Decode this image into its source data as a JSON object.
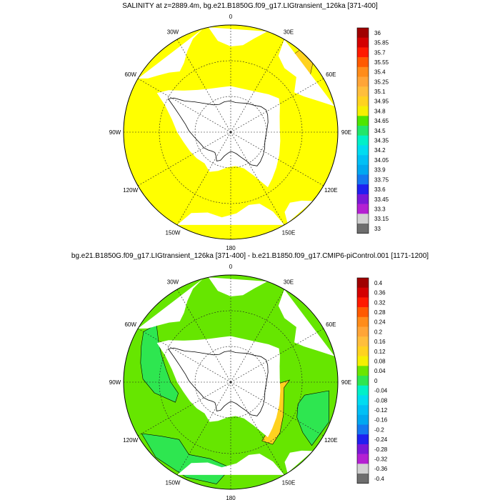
{
  "panels": [
    {
      "id": "top",
      "title": "SALINITY at z=2889.4m, bg.e21.B1850G.f09_g17.LIGtransient_126ka [371-400]",
      "lon_labels": [
        "0",
        "30E",
        "60E",
        "90E",
        "120E",
        "150E",
        "180",
        "150W",
        "120W",
        "90W",
        "60W",
        "30W"
      ],
      "colorbar": {
        "labels": [
          "36",
          "35.85",
          "35.7",
          "35.55",
          "35.4",
          "35.25",
          "35.1",
          "34.95",
          "34.8",
          "34.65",
          "34.5",
          "34.35",
          "34.2",
          "34.05",
          "33.9",
          "33.75",
          "33.6",
          "33.45",
          "33.3",
          "33.15",
          "33"
        ],
        "colors": [
          "#a00000",
          "#d40000",
          "#ff1a00",
          "#ff5a00",
          "#ff8c1a",
          "#ffa538",
          "#ffbe3c",
          "#ffd21f",
          "#f5f000",
          "#4ee600",
          "#22e66a",
          "#00f0c8",
          "#00dcf0",
          "#00c0f5",
          "#00a8f0",
          "#1478f0",
          "#2020f0",
          "#7a18d8",
          "#b420d2",
          "#d2d2d2",
          "#6e6e6e"
        ]
      },
      "field": {
        "dominant_color": "#ffff00",
        "dominant_value_range": [
          34.8,
          34.95
        ]
      }
    },
    {
      "id": "bottom",
      "title": "bg.e21.B1850G.f09_g17.LIGtransient_126ka [371-400] - b.e21.B1850.f09_g17.CMIP6-piControl.001 [1171-1200]",
      "lon_labels": [
        "0",
        "30E",
        "60E",
        "90E",
        "120E",
        "150E",
        "180",
        "150W",
        "120W",
        "90W",
        "60W",
        "30W"
      ],
      "colorbar": {
        "labels": [
          "0.4",
          "0.36",
          "0.32",
          "0.28",
          "0.24",
          "0.2",
          "0.16",
          "0.12",
          "0.08",
          "0.04",
          "0",
          "-0.04",
          "-0.08",
          "-0.12",
          "-0.16",
          "-0.2",
          "-0.24",
          "-0.28",
          "-0.32",
          "-0.36",
          "-0.4"
        ],
        "colors": [
          "#a00000",
          "#d40000",
          "#ff1a00",
          "#ff5a00",
          "#ff8c1a",
          "#ffa538",
          "#ffbe3c",
          "#ffd21f",
          "#f5f000",
          "#6be600",
          "#2ee650",
          "#00f0c8",
          "#00dcf0",
          "#00c0f5",
          "#00a8f0",
          "#1478f0",
          "#2020f0",
          "#7a18d8",
          "#b420d2",
          "#d2d2d2",
          "#6e6e6e"
        ]
      },
      "field": {
        "dominant_color": "#66e600",
        "secondary_color": "#2ee650",
        "positive_color": "#ffd21f",
        "dominant_value_range": [
          0.04,
          0.08
        ]
      }
    }
  ]
}
